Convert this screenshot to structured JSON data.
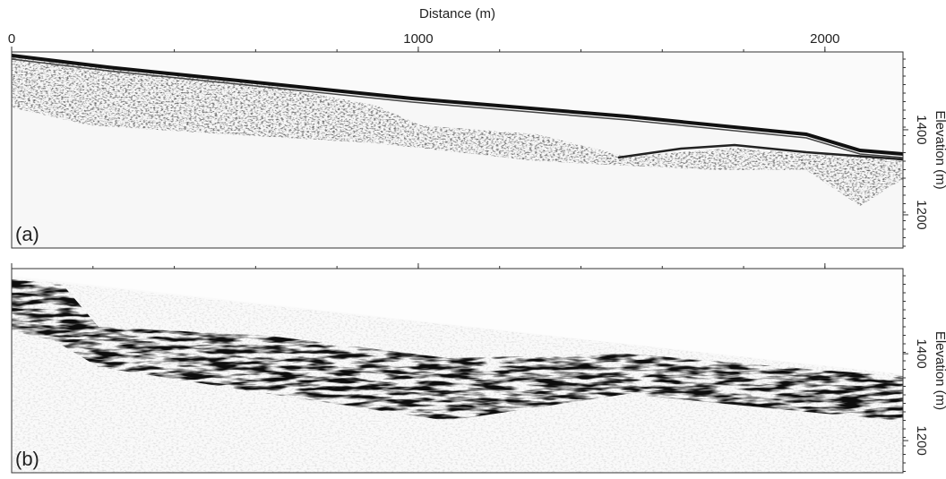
{
  "chart_data": [
    {
      "type": "image",
      "panel_label": "(a)",
      "xlabel": "Distance (m)",
      "ylabel": "Elevation (m)",
      "xlim": [
        0,
        2192
      ],
      "xticks": [
        0,
        1000,
        2000
      ],
      "ylim": [
        1122,
        1583
      ],
      "yticks": [
        1200,
        1400
      ]
    },
    {
      "type": "image",
      "panel_label": "(b)",
      "ylabel": "Elevation (m)",
      "ylim": [
        1126,
        1596
      ],
      "yticks": [
        1200,
        1400
      ]
    }
  ]
}
